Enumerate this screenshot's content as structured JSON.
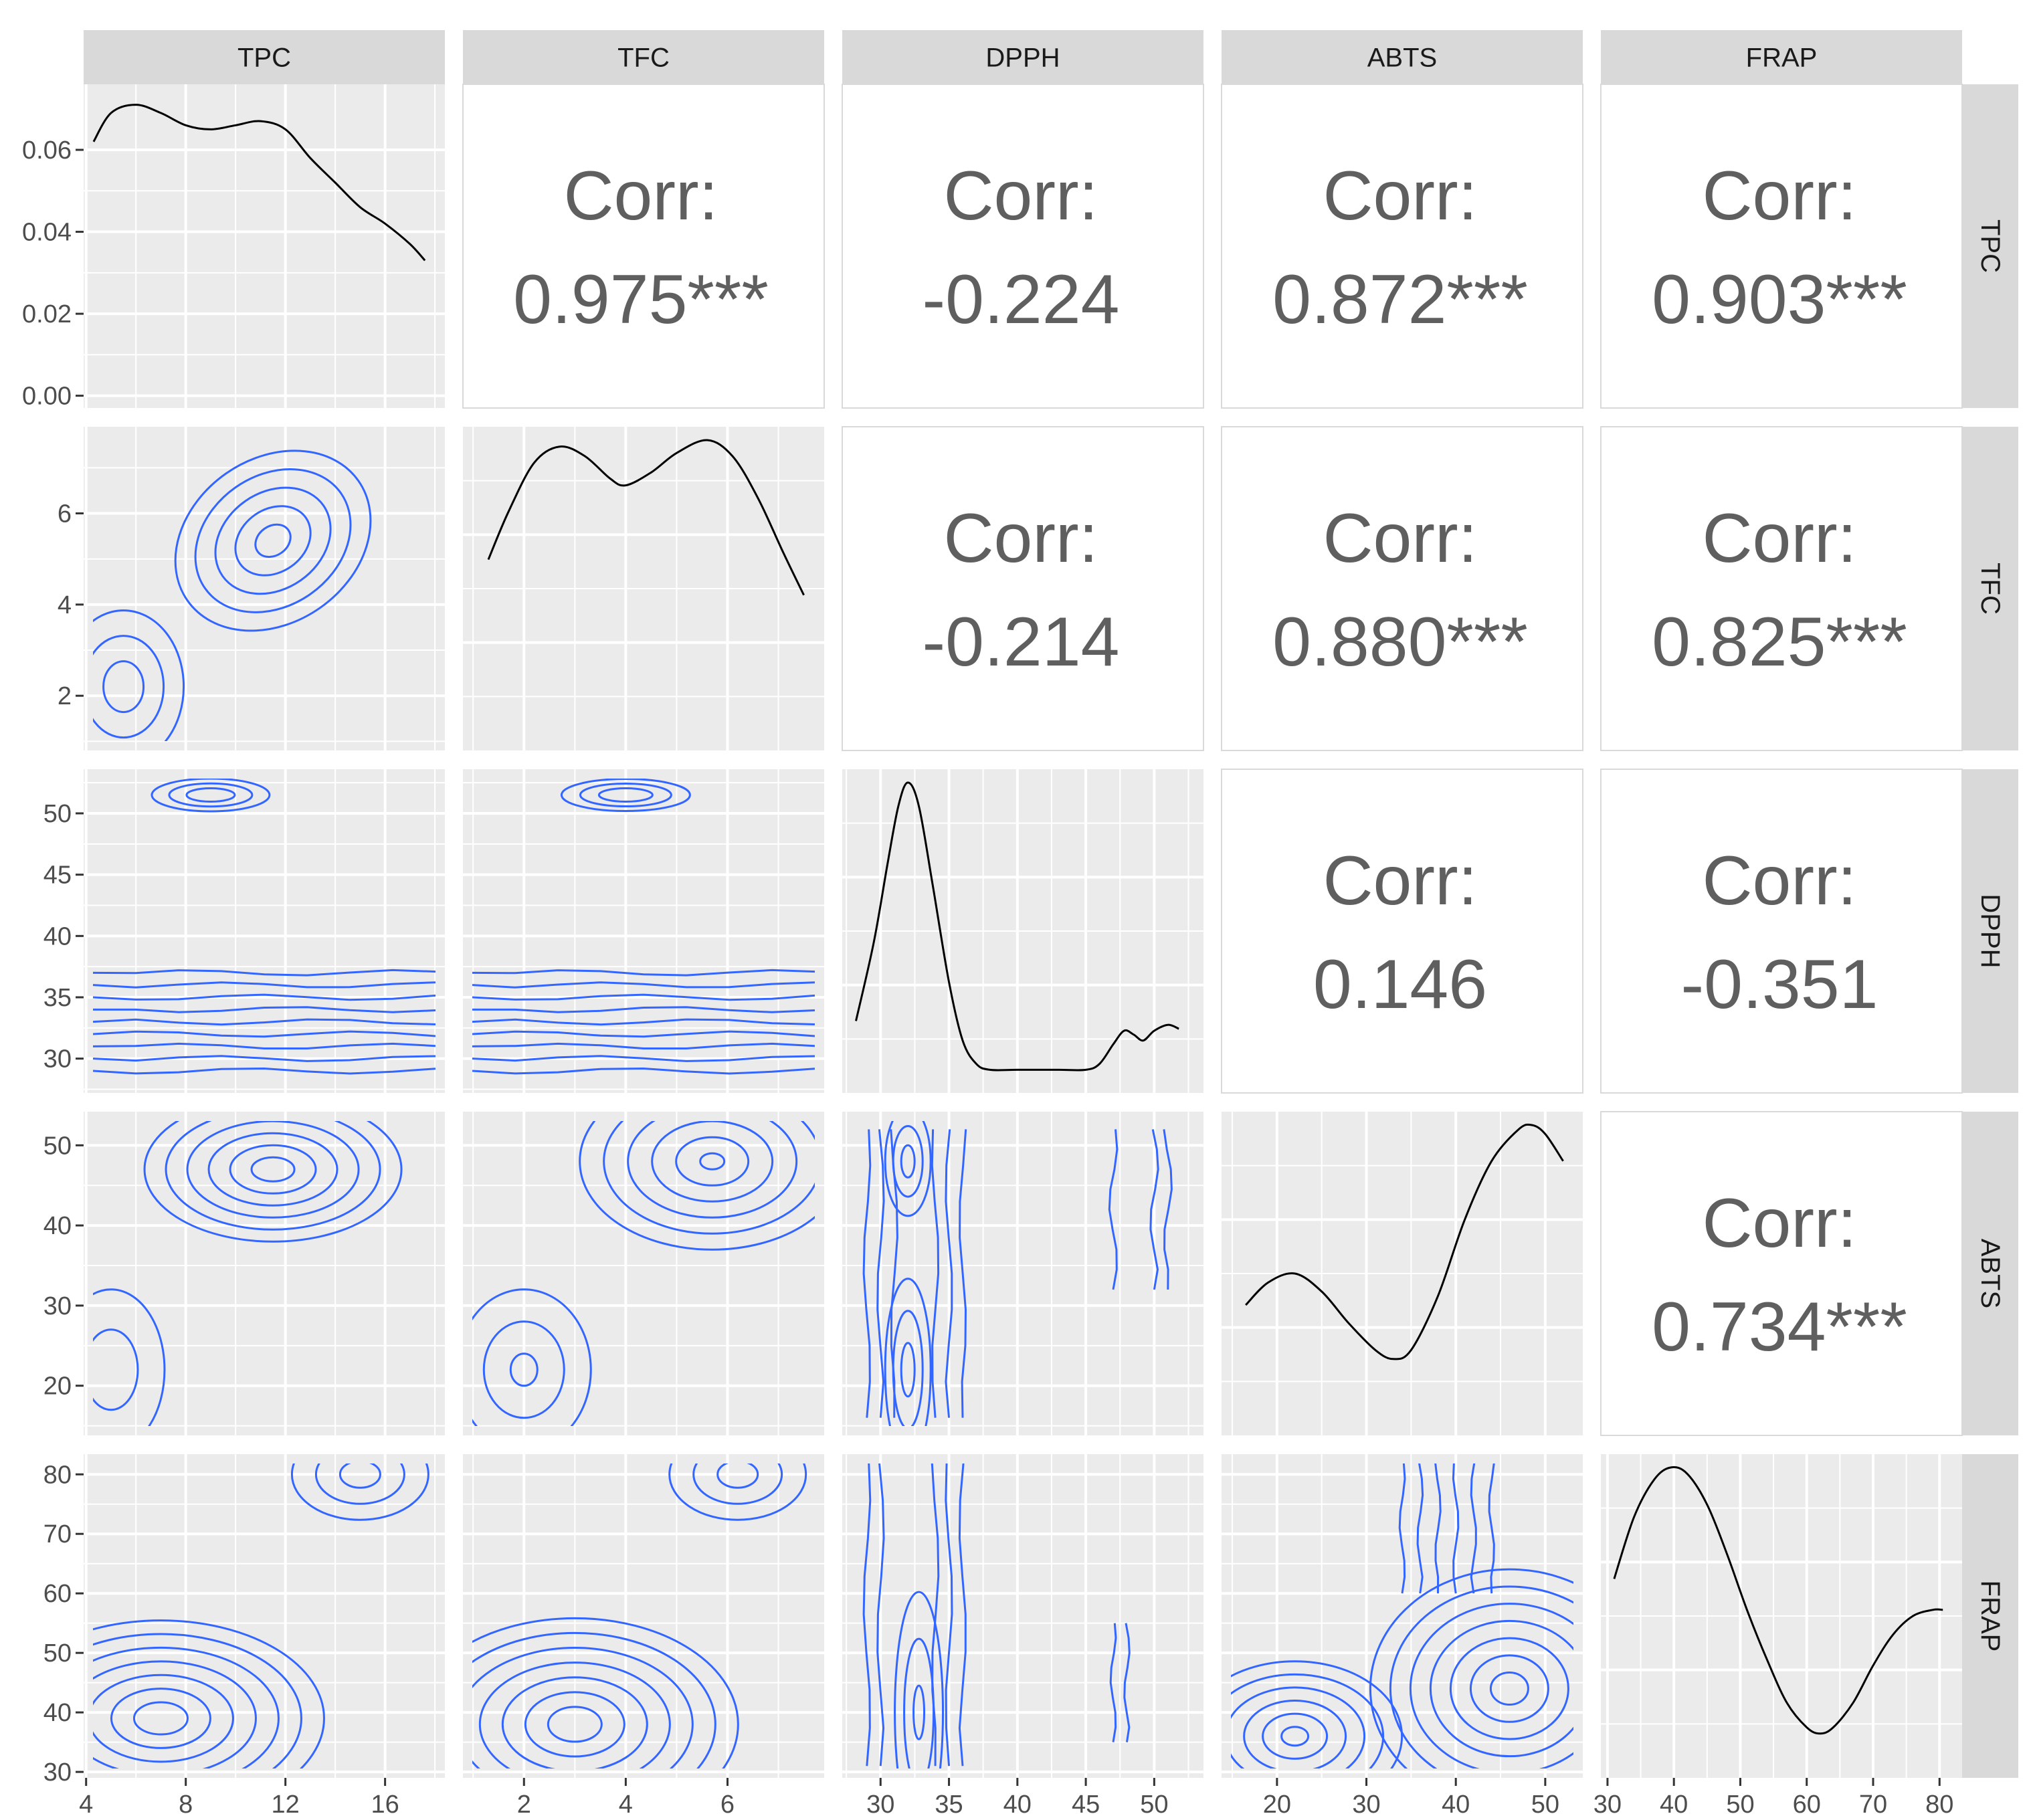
{
  "chart_data": {
    "type": "scatterplot-matrix",
    "variables": [
      "TPC",
      "TFC",
      "DPPH",
      "ABTS",
      "FRAP"
    ],
    "colors": {
      "panel_background": "#ebebeb",
      "grid": "#ffffff",
      "strip_background": "#d9d9d9",
      "density_line": "#000000",
      "contour_line": "#3366ff",
      "corr_text": "#5f5f5f"
    },
    "axes": {
      "x": [
        {
          "ticks": [
            4,
            8,
            12,
            16
          ],
          "range": [
            3.9,
            18.4
          ]
        },
        {
          "ticks": [
            2,
            4,
            6
          ],
          "range": [
            0.8,
            7.9
          ]
        },
        {
          "ticks": [
            30,
            35,
            40,
            45,
            50
          ],
          "range": [
            27.2,
            53.6
          ]
        },
        {
          "ticks": [
            20,
            30,
            40,
            50
          ],
          "range": [
            13.8,
            54.2
          ]
        },
        {
          "ticks": [
            30,
            40,
            50,
            60,
            70,
            80
          ],
          "range": [
            29,
            83.4
          ]
        }
      ],
      "y": [
        {
          "ticks": [
            0.0,
            0.02,
            0.04,
            0.06
          ],
          "labels": [
            "0.00",
            "0.02",
            "0.04",
            "0.06"
          ],
          "range": [
            -0.003,
            0.076
          ]
        },
        {
          "ticks": [
            2,
            4,
            6
          ],
          "range": [
            0.8,
            7.9
          ]
        },
        {
          "ticks": [
            30,
            35,
            40,
            45,
            50
          ],
          "range": [
            27.2,
            53.6
          ]
        },
        {
          "ticks": [
            20,
            30,
            40,
            50
          ],
          "range": [
            13.8,
            54.2
          ]
        },
        {
          "ticks": [
            30,
            40,
            50,
            60,
            70,
            80
          ],
          "range": [
            29,
            83.4
          ]
        }
      ]
    },
    "correlations": [
      {
        "row": "TPC",
        "col": "TFC",
        "label": "Corr:",
        "value": "0.975***"
      },
      {
        "row": "TPC",
        "col": "DPPH",
        "label": "Corr:",
        "value": "-0.224"
      },
      {
        "row": "TPC",
        "col": "ABTS",
        "label": "Corr:",
        "value": "0.872***"
      },
      {
        "row": "TPC",
        "col": "FRAP",
        "label": "Corr:",
        "value": "0.903***"
      },
      {
        "row": "TFC",
        "col": "DPPH",
        "label": "Corr:",
        "value": "-0.214"
      },
      {
        "row": "TFC",
        "col": "ABTS",
        "label": "Corr:",
        "value": "0.880***"
      },
      {
        "row": "TFC",
        "col": "FRAP",
        "label": "Corr:",
        "value": "0.825***"
      },
      {
        "row": "DPPH",
        "col": "ABTS",
        "label": "Corr:",
        "value": "0.146"
      },
      {
        "row": "DPPH",
        "col": "FRAP",
        "label": "Corr:",
        "value": "-0.351"
      },
      {
        "row": "ABTS",
        "col": "FRAP",
        "label": "Corr:",
        "value": "0.734***"
      }
    ],
    "densities": [
      {
        "variable": "TPC",
        "x": [
          4.3,
          5,
          6,
          7,
          8,
          9,
          10,
          11,
          12,
          13,
          14,
          15,
          16,
          17,
          17.6
        ],
        "y": [
          0.062,
          0.069,
          0.071,
          0.069,
          0.066,
          0.065,
          0.066,
          0.067,
          0.065,
          0.058,
          0.052,
          0.046,
          0.042,
          0.037,
          0.033
        ]
      },
      {
        "variable": "TFC",
        "x": [
          1.3,
          1.7,
          2.2,
          2.7,
          3.2,
          3.7,
          4.0,
          4.5,
          5.0,
          5.6,
          6.1,
          6.6,
          7.1,
          7.5
        ],
        "y": [
          0.55,
          0.7,
          0.85,
          0.9,
          0.87,
          0.8,
          0.78,
          0.82,
          0.88,
          0.92,
          0.87,
          0.74,
          0.57,
          0.44
        ]
      },
      {
        "variable": "DPPH",
        "x": [
          28.2,
          29.5,
          30.5,
          31.3,
          32,
          32.8,
          33.8,
          35,
          36,
          37,
          38,
          40,
          43,
          45,
          46,
          47,
          47.8,
          48.5,
          49.2,
          50,
          51,
          51.8
        ],
        "y": [
          0.03,
          0.07,
          0.11,
          0.14,
          0.152,
          0.14,
          0.1,
          0.05,
          0.02,
          0.008,
          0.005,
          0.005,
          0.005,
          0.005,
          0.008,
          0.018,
          0.025,
          0.023,
          0.02,
          0.025,
          0.028,
          0.026
        ]
      },
      {
        "variable": "ABTS",
        "x": [
          16.5,
          19,
          22,
          25,
          28,
          31,
          33,
          35,
          38,
          41,
          44,
          47,
          48.5,
          50,
          52
        ],
        "y": [
          0.026,
          0.031,
          0.033,
          0.029,
          0.022,
          0.016,
          0.014,
          0.016,
          0.028,
          0.045,
          0.058,
          0.065,
          0.066,
          0.064,
          0.058
        ]
      },
      {
        "variable": "FRAP",
        "x": [
          31,
          34,
          37,
          39.5,
          42,
          45,
          48,
          51,
          54,
          57,
          60,
          62,
          64,
          67,
          70,
          73,
          76,
          79,
          80.5
        ],
        "y": [
          0.03,
          0.04,
          0.046,
          0.048,
          0.047,
          0.042,
          0.034,
          0.025,
          0.017,
          0.01,
          0.006,
          0.005,
          0.006,
          0.01,
          0.016,
          0.021,
          0.024,
          0.025,
          0.025
        ]
      }
    ]
  }
}
